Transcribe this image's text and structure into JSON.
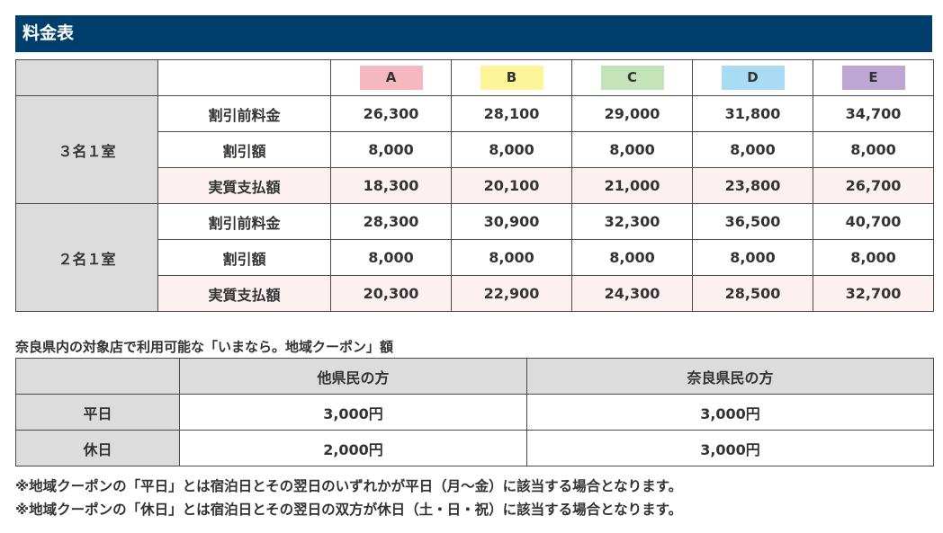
{
  "title": "料金表",
  "plans": [
    {
      "label": "A",
      "color": "#f5b8c0"
    },
    {
      "label": "B",
      "color": "#fdf59a"
    },
    {
      "label": "C",
      "color": "#c5e3b8"
    },
    {
      "label": "D",
      "color": "#a9dcf4"
    },
    {
      "label": "E",
      "color": "#bea6d2"
    }
  ],
  "price_groups": [
    {
      "label": "３名１室",
      "rows": [
        {
          "label": "割引前料金",
          "kind": "base",
          "values": [
            "26,300",
            "28,100",
            "29,000",
            "31,800",
            "34,700"
          ]
        },
        {
          "label": "割引額",
          "kind": "discount",
          "values": [
            "8,000",
            "8,000",
            "8,000",
            "8,000",
            "8,000"
          ]
        },
        {
          "label": "実質支払額",
          "kind": "pay",
          "values": [
            "18,300",
            "20,100",
            "21,000",
            "23,800",
            "26,700"
          ]
        }
      ]
    },
    {
      "label": "２名１室",
      "rows": [
        {
          "label": "割引前料金",
          "kind": "base",
          "values": [
            "28,300",
            "30,900",
            "32,300",
            "36,500",
            "40,700"
          ]
        },
        {
          "label": "割引額",
          "kind": "discount",
          "values": [
            "8,000",
            "8,000",
            "8,000",
            "8,000",
            "8,000"
          ]
        },
        {
          "label": "実質支払額",
          "kind": "pay",
          "values": [
            "20,300",
            "22,900",
            "24,300",
            "28,500",
            "32,700"
          ]
        }
      ]
    }
  ],
  "coupon": {
    "caption": "奈良県内の対象店で利用可能な「いまなら。地域クーポン」額",
    "columns": [
      "他県民の方",
      "奈良県民の方"
    ],
    "rows": [
      {
        "label": "平日",
        "values": [
          "3,000円",
          "3,000円"
        ]
      },
      {
        "label": "休日",
        "values": [
          "2,000円",
          "3,000円"
        ]
      }
    ]
  },
  "notes": [
    "※地域クーポンの「平日」とは宿泊日とその翌日のいずれかが平日（月～金）に該当する場合となります。",
    "※地域クーポンの「休日」とは宿泊日とその翌日の双方が休日（土・日・祝）に該当する場合となります。"
  ]
}
